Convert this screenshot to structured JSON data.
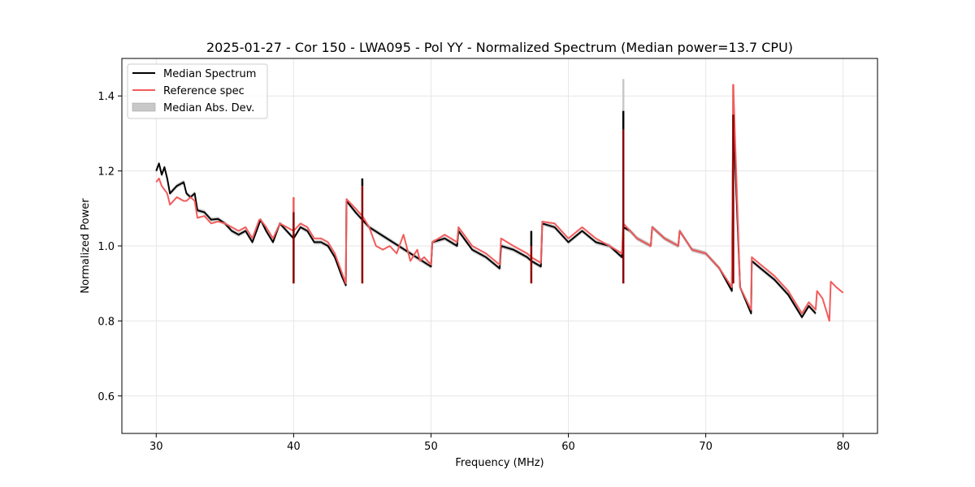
{
  "chart_data": {
    "type": "line",
    "title": "2025-01-27 - Cor 150 - LWA095 - Pol YY - Normalized Spectrum (Median power=13.7 CPU)",
    "xlabel": "Frequency (MHz)",
    "ylabel": "Normalized Power",
    "xlim": [
      27.5,
      82.5
    ],
    "ylim": [
      0.5,
      1.5
    ],
    "xticks": [
      30,
      40,
      50,
      60,
      70,
      80
    ],
    "yticks": [
      0.6,
      0.8,
      1.0,
      1.2,
      1.4
    ],
    "xtick_labels": [
      "30",
      "40",
      "50",
      "60",
      "70",
      "80"
    ],
    "ytick_labels": [
      "0.6",
      "0.8",
      "1.0",
      "1.2",
      "1.4"
    ],
    "grid": true,
    "legend_position": "top-left",
    "legend": [
      "Median Spectrum",
      "Reference spec",
      "Median Abs. Dev."
    ],
    "colors": {
      "median": "#000000",
      "reference": "#f25c5c",
      "mad": "#c8c8c8",
      "overlap": "#8b0000"
    },
    "series": [
      {
        "name": "Median Spectrum",
        "x": [
          30.0,
          30.2,
          30.4,
          30.6,
          30.8,
          31.0,
          31.5,
          32.0,
          32.2,
          32.5,
          32.8,
          33.0,
          33.5,
          34.0,
          34.5,
          35.0,
          35.5,
          36.0,
          36.5,
          37.0,
          37.5,
          37.6,
          38.0,
          38.5,
          39.0,
          39.5,
          40.0,
          40.5,
          41.0,
          41.5,
          42.0,
          42.5,
          43.0,
          43.5,
          43.8,
          43.85,
          44.5,
          45.0,
          45.5,
          50.0,
          50.1,
          51.0,
          51.9,
          52.0,
          53.0,
          54.0,
          55.0,
          55.1,
          56.0,
          57.0,
          57.3,
          58.0,
          58.1,
          59.0,
          60.0,
          61.0,
          62.0,
          63.0,
          63.9,
          64.0,
          64.5,
          65.0,
          66.0,
          66.1,
          67.0,
          68.0,
          68.1,
          69.0,
          70.0,
          71.0,
          71.9,
          72.0,
          72.5,
          73.3,
          73.35,
          74.0,
          75.0,
          76.0,
          76.5,
          77.0,
          77.5,
          78.0
        ],
        "values": [
          1.2,
          1.22,
          1.19,
          1.21,
          1.18,
          1.14,
          1.16,
          1.17,
          1.14,
          1.13,
          1.14,
          1.095,
          1.09,
          1.07,
          1.072,
          1.06,
          1.04,
          1.03,
          1.04,
          1.01,
          1.06,
          1.07,
          1.04,
          1.01,
          1.06,
          1.04,
          1.02,
          1.05,
          1.04,
          1.01,
          1.01,
          1.0,
          0.97,
          0.92,
          0.895,
          1.12,
          1.09,
          1.07,
          1.05,
          0.945,
          1.01,
          1.02,
          1.0,
          1.04,
          0.99,
          0.97,
          0.94,
          1.0,
          0.99,
          0.97,
          0.96,
          0.945,
          1.06,
          1.05,
          1.01,
          1.04,
          1.01,
          1.0,
          0.97,
          1.05,
          1.04,
          1.02,
          1.0,
          1.05,
          1.02,
          1.0,
          1.04,
          0.99,
          0.98,
          0.94,
          0.88,
          1.35,
          0.89,
          0.82,
          0.96,
          0.94,
          0.91,
          0.87,
          0.84,
          0.81,
          0.84,
          0.82
        ]
      },
      {
        "name": "Reference spec",
        "x": [
          30.0,
          30.2,
          30.4,
          30.6,
          30.8,
          31.0,
          31.5,
          32.0,
          32.2,
          32.5,
          32.8,
          33.0,
          33.5,
          34.0,
          34.5,
          35.0,
          35.5,
          36.0,
          36.5,
          37.0,
          37.5,
          37.6,
          38.0,
          38.5,
          39.0,
          39.5,
          40.0,
          40.5,
          41.0,
          41.5,
          42.0,
          42.5,
          43.0,
          43.5,
          43.8,
          43.85,
          44.5,
          45.0,
          45.5,
          46.0,
          46.5,
          47.0,
          47.5,
          48.0,
          48.5,
          49.0,
          49.2,
          49.5,
          50.0,
          50.1,
          51.0,
          51.9,
          52.0,
          53.0,
          54.0,
          55.0,
          55.1,
          56.0,
          57.0,
          57.3,
          58.0,
          58.1,
          59.0,
          60.0,
          61.0,
          62.0,
          63.0,
          63.9,
          64.0,
          64.5,
          65.0,
          66.0,
          66.1,
          67.0,
          68.0,
          68.1,
          69.0,
          70.0,
          71.0,
          71.9,
          72.0,
          72.5,
          73.3,
          73.35,
          74.0,
          75.0,
          76.0,
          76.5,
          77.0,
          77.5,
          78.0,
          78.1,
          78.5,
          79.0,
          79.1,
          79.5,
          80.0
        ],
        "values": [
          1.17,
          1.18,
          1.16,
          1.15,
          1.14,
          1.11,
          1.13,
          1.12,
          1.12,
          1.13,
          1.12,
          1.075,
          1.08,
          1.06,
          1.065,
          1.06,
          1.05,
          1.04,
          1.05,
          1.02,
          1.07,
          1.07,
          1.05,
          1.02,
          1.06,
          1.05,
          1.04,
          1.06,
          1.05,
          1.02,
          1.02,
          1.01,
          0.98,
          0.93,
          0.9,
          1.125,
          1.1,
          1.08,
          1.05,
          1.0,
          0.99,
          1.0,
          0.98,
          1.03,
          0.96,
          0.99,
          0.96,
          0.97,
          0.95,
          1.01,
          1.03,
          1.01,
          1.05,
          1.0,
          0.98,
          0.95,
          1.02,
          1.0,
          0.98,
          0.97,
          0.955,
          1.065,
          1.06,
          1.02,
          1.05,
          1.02,
          1.0,
          0.98,
          1.06,
          1.04,
          1.02,
          1.0,
          1.05,
          1.02,
          1.0,
          1.04,
          0.99,
          0.98,
          0.94,
          0.89,
          1.43,
          0.89,
          0.83,
          0.97,
          0.95,
          0.92,
          0.88,
          0.85,
          0.82,
          0.85,
          0.83,
          0.88,
          0.86,
          0.8,
          0.905,
          0.89,
          0.875
        ]
      }
    ],
    "spikes": [
      {
        "name": "spike-40",
        "x": 40.0,
        "median": 1.09,
        "reference": 1.13
      },
      {
        "name": "spike-45",
        "x": 45.0,
        "median": 1.18,
        "reference": 1.16
      },
      {
        "name": "spike-57",
        "x": 57.3,
        "median": 1.04,
        "reference": 1.0
      },
      {
        "name": "spike-64",
        "x": 64.0,
        "median": 1.36,
        "reference": 1.31,
        "mad_top": 1.445
      },
      {
        "name": "spike-72",
        "x": 72.0,
        "median": 1.35,
        "reference": 1.43
      }
    ]
  }
}
